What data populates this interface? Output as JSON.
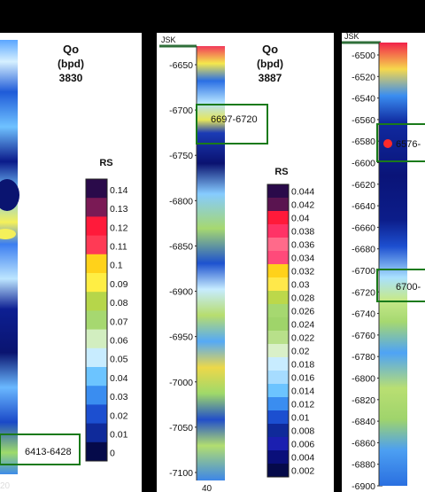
{
  "panels": [
    {
      "id": "p1",
      "qo_title": "Qo",
      "qo_unit": "(bpd)",
      "qo_value": "3830",
      "well_label": "",
      "bottom_tick": "20",
      "zones": [
        {
          "label": "6413-6428",
          "color": "#1a7a1a"
        }
      ],
      "rs_title": "RS",
      "rs_labels": [
        "0.14",
        "0.13",
        "0.12",
        "0.11",
        "0.1",
        "0.09",
        "0.08",
        "0.07",
        "0.06",
        "0.05",
        "0.04",
        "0.03",
        "0.02",
        "0.01",
        "0"
      ]
    },
    {
      "id": "p2",
      "well_label": "JSK",
      "qo_title": "Qo",
      "qo_unit": "(bpd)",
      "qo_value": "3887",
      "bottom_tick": "40",
      "depth_ticks": [
        "-6650",
        "-6700",
        "-6750",
        "-6800",
        "-6850",
        "-6900",
        "-6950",
        "-7000",
        "-7050",
        "-7100"
      ],
      "zones": [
        {
          "label": "6697-6720",
          "color": "#1a7a1a"
        }
      ],
      "rs_title": "RS",
      "rs_labels": [
        "0.044",
        "0.042",
        "0.04",
        "0.038",
        "0.036",
        "0.034",
        "0.032",
        "0.03",
        "0.028",
        "0.026",
        "0.024",
        "0.022",
        "0.02",
        "0.018",
        "0.016",
        "0.014",
        "0.012",
        "0.01",
        "0.008",
        "0.006",
        "0.004",
        "0.002"
      ]
    },
    {
      "id": "p3",
      "well_label": "JSK",
      "depth_ticks": [
        "-6500",
        "-6520",
        "-6540",
        "-6560",
        "-6580",
        "-6600",
        "-6620",
        "-6640",
        "-6660",
        "-6680",
        "-6700",
        "-6720",
        "-6740",
        "-6760",
        "-6780",
        "-6800",
        "-6820",
        "-6840",
        "-6860",
        "-6880",
        "-6900"
      ],
      "zones": [
        {
          "label": "6576-",
          "color": "#1a7a1a"
        },
        {
          "label": "6700-",
          "color": "#1a7a1a"
        }
      ]
    }
  ],
  "colors": {
    "background": "#000000",
    "panel_bg": "#ffffff",
    "zone_border": "#1a7a1a",
    "well_marker": "#2f6f3a",
    "perforation_dot": "#ff2a2a"
  }
}
